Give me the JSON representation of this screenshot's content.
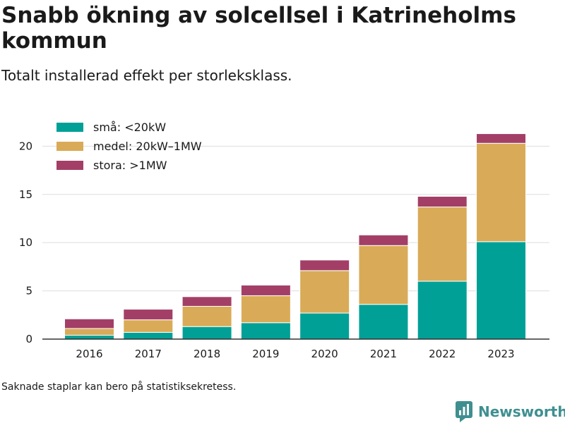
{
  "header": {
    "title": "Snabb ökning av solcellsel i Katrineholms kommun",
    "subtitle": "Totalt installerad effekt per storleksklass."
  },
  "footnote": "Saknade staplar kan bero på statistiksekretess.",
  "brand": {
    "name": "Newsworthy",
    "icon": "newsworthy-logo-icon"
  },
  "colors": {
    "small": "#00a096",
    "medium": "#d9ab58",
    "large": "#a33f66",
    "grid": "#dddddd",
    "axis": "#333333",
    "text": "#1a1a1a",
    "brand": "#3f8f90"
  },
  "chart_data": {
    "type": "bar",
    "stacked": true,
    "categories": [
      "2016",
      "2017",
      "2018",
      "2019",
      "2020",
      "2021",
      "2022",
      "2023"
    ],
    "series": [
      {
        "name": "små: <20kW",
        "values": [
          0.4,
          0.7,
          1.3,
          1.7,
          2.7,
          3.6,
          6.0,
          10.1
        ]
      },
      {
        "name": "medel: 20kW–1MW",
        "values": [
          0.7,
          1.3,
          2.1,
          2.8,
          4.4,
          6.1,
          7.7,
          10.2
        ]
      },
      {
        "name": "stora: >1MW",
        "values": [
          1.0,
          1.1,
          1.0,
          1.1,
          1.1,
          1.1,
          1.1,
          1.0
        ]
      }
    ],
    "ylim": [
      0,
      22
    ],
    "yticks": [
      0,
      5,
      10,
      15,
      20
    ],
    "grid": true,
    "legend": "top-left"
  }
}
